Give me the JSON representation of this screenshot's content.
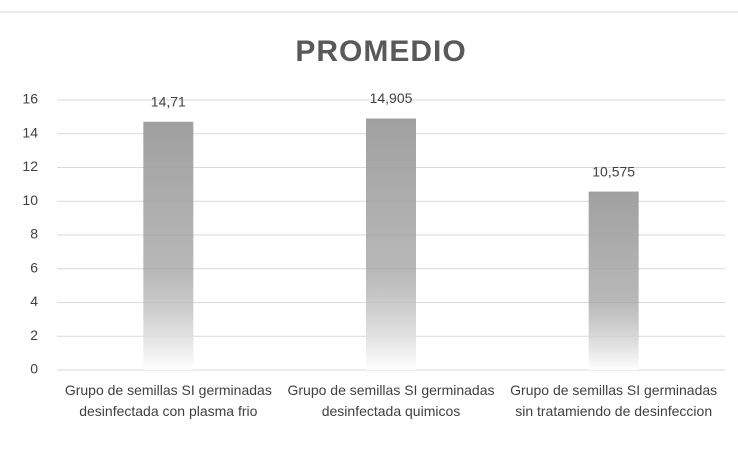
{
  "chart_data": {
    "type": "bar",
    "title": "PROMEDIO",
    "categories": [
      "Grupo de semillas SI germinadas desinfectada con plasma frio",
      "Grupo de semillas SI germinadas desinfectada quimicos",
      "Grupo de semillas SI germinadas sin tratamiendo de desinfeccion"
    ],
    "values": [
      14.71,
      14.905,
      10.575
    ],
    "value_labels": [
      "14,71",
      "14,905",
      "10,575"
    ],
    "color": "#a0a0a0",
    "ylim": [
      0,
      16
    ],
    "yticks": [
      0,
      2,
      4,
      6,
      8,
      10,
      12,
      14,
      16
    ],
    "grid": true
  }
}
